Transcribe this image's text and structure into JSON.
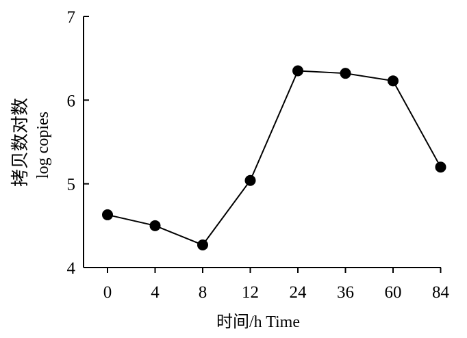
{
  "chart_data": {
    "type": "line",
    "categories": [
      "0",
      "4",
      "8",
      "12",
      "24",
      "36",
      "60",
      "84"
    ],
    "series": [
      {
        "values": [
          4.63,
          4.5,
          4.27,
          5.04,
          6.35,
          6.32,
          6.23,
          5.2
        ]
      }
    ],
    "title": "",
    "xlabel": "时间/h Time",
    "ylabel_cn": "拷贝数对数",
    "ylabel_en": "log copies",
    "ylim": [
      4,
      7
    ],
    "yticks": [
      "4",
      "5",
      "6",
      "7"
    ],
    "grid": false,
    "legend": "none",
    "color": "#000000"
  }
}
